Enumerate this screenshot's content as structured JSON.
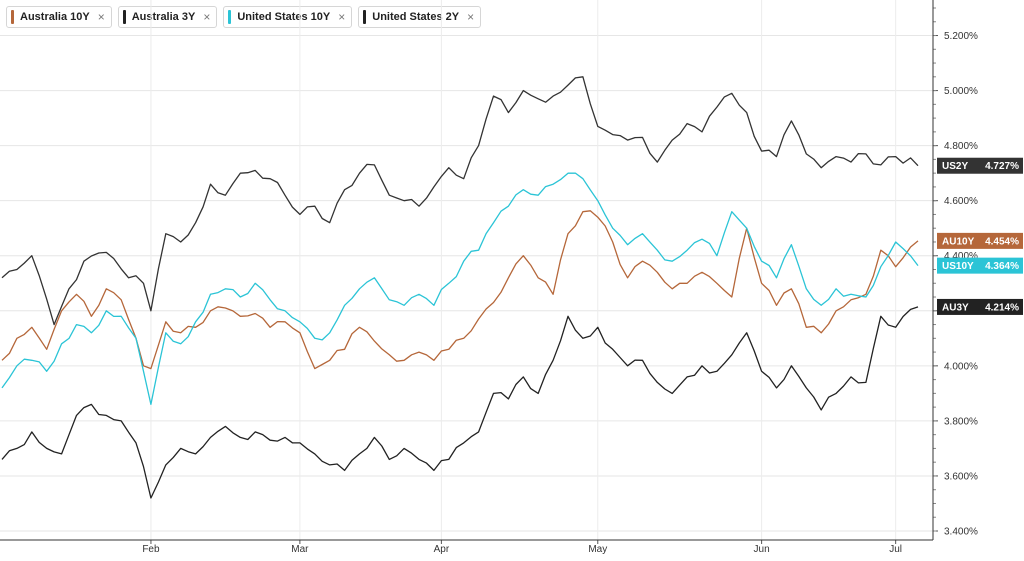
{
  "legend": [
    {
      "label": "Australia 10Y",
      "color": "#b5673a",
      "close": "×"
    },
    {
      "label": "Australia 3Y",
      "color": "#222222",
      "close": "×"
    },
    {
      "label": "United States 10Y",
      "color": "#2bc4d6",
      "close": "×"
    },
    {
      "label": "United States 2Y",
      "color": "#222222",
      "close": "×"
    }
  ],
  "chart_data": {
    "type": "line",
    "ylim": [
      3.4,
      5.3
    ],
    "yticks": [
      "5.200%",
      "5.000%",
      "4.800%",
      "4.600%",
      "4.400%",
      "4.200%",
      "4.000%",
      "3.800%",
      "3.600%",
      "3.400%"
    ],
    "ytick_values": [
      5.2,
      5.0,
      4.8,
      4.6,
      4.4,
      4.2,
      4.0,
      3.8,
      3.6,
      3.4
    ],
    "xticks": [
      "Feb",
      "Mar",
      "Apr",
      "May",
      "Jun",
      "Jul"
    ],
    "xtick_index": [
      20,
      40,
      59,
      80,
      102,
      120
    ],
    "n_points": 124,
    "grid": true,
    "series": [
      {
        "name": "United States 2Y",
        "label": "US2Y",
        "last_label": "4.727%",
        "color": "#333333",
        "keypoints": [
          [
            0,
            4.32
          ],
          [
            2,
            4.35
          ],
          [
            4,
            4.4
          ],
          [
            7,
            4.15
          ],
          [
            9,
            4.28
          ],
          [
            11,
            4.38
          ],
          [
            13,
            4.41
          ],
          [
            15,
            4.39
          ],
          [
            17,
            4.32
          ],
          [
            19,
            4.3
          ],
          [
            20,
            4.2
          ],
          [
            22,
            4.48
          ],
          [
            24,
            4.45
          ],
          [
            26,
            4.52
          ],
          [
            28,
            4.66
          ],
          [
            30,
            4.62
          ],
          [
            32,
            4.7
          ],
          [
            34,
            4.71
          ],
          [
            36,
            4.68
          ],
          [
            38,
            4.62
          ],
          [
            40,
            4.55
          ],
          [
            42,
            4.58
          ],
          [
            44,
            4.52
          ],
          [
            46,
            4.64
          ],
          [
            48,
            4.7
          ],
          [
            50,
            4.73
          ],
          [
            52,
            4.62
          ],
          [
            54,
            4.6
          ],
          [
            56,
            4.58
          ],
          [
            58,
            4.65
          ],
          [
            60,
            4.72
          ],
          [
            62,
            4.68
          ],
          [
            64,
            4.8
          ],
          [
            66,
            4.98
          ],
          [
            68,
            4.92
          ],
          [
            70,
            5.0
          ],
          [
            72,
            4.97
          ],
          [
            74,
            4.98
          ],
          [
            76,
            5.02
          ],
          [
            78,
            5.05
          ],
          [
            80,
            4.87
          ],
          [
            82,
            4.84
          ],
          [
            84,
            4.82
          ],
          [
            86,
            4.83
          ],
          [
            88,
            4.74
          ],
          [
            90,
            4.82
          ],
          [
            92,
            4.88
          ],
          [
            94,
            4.85
          ],
          [
            96,
            4.94
          ],
          [
            98,
            4.99
          ],
          [
            100,
            4.92
          ],
          [
            102,
            4.78
          ],
          [
            104,
            4.76
          ],
          [
            106,
            4.89
          ],
          [
            108,
            4.77
          ],
          [
            110,
            4.72
          ],
          [
            112,
            4.76
          ],
          [
            114,
            4.74
          ],
          [
            116,
            4.77
          ],
          [
            118,
            4.73
          ],
          [
            120,
            4.76
          ],
          [
            123,
            4.727
          ]
        ]
      },
      {
        "name": "Australia 10Y",
        "label": "AU10Y",
        "last_label": "4.454%",
        "color": "#b5673a",
        "keypoints": [
          [
            0,
            4.02
          ],
          [
            2,
            4.1
          ],
          [
            4,
            4.14
          ],
          [
            6,
            4.06
          ],
          [
            8,
            4.2
          ],
          [
            10,
            4.26
          ],
          [
            12,
            4.18
          ],
          [
            14,
            4.28
          ],
          [
            16,
            4.24
          ],
          [
            18,
            4.1
          ],
          [
            19,
            4.0
          ],
          [
            20,
            3.99
          ],
          [
            22,
            4.16
          ],
          [
            24,
            4.12
          ],
          [
            26,
            4.14
          ],
          [
            28,
            4.2
          ],
          [
            30,
            4.21
          ],
          [
            32,
            4.18
          ],
          [
            34,
            4.19
          ],
          [
            36,
            4.14
          ],
          [
            38,
            4.16
          ],
          [
            40,
            4.12
          ],
          [
            42,
            3.99
          ],
          [
            44,
            4.02
          ],
          [
            46,
            4.06
          ],
          [
            48,
            4.14
          ],
          [
            50,
            4.09
          ],
          [
            52,
            4.04
          ],
          [
            54,
            4.02
          ],
          [
            56,
            4.05
          ],
          [
            58,
            4.02
          ],
          [
            60,
            4.06
          ],
          [
            62,
            4.1
          ],
          [
            64,
            4.17
          ],
          [
            66,
            4.23
          ],
          [
            68,
            4.32
          ],
          [
            70,
            4.4
          ],
          [
            72,
            4.32
          ],
          [
            74,
            4.26
          ],
          [
            76,
            4.48
          ],
          [
            78,
            4.56
          ],
          [
            80,
            4.54
          ],
          [
            82,
            4.45
          ],
          [
            84,
            4.32
          ],
          [
            86,
            4.38
          ],
          [
            88,
            4.34
          ],
          [
            90,
            4.28
          ],
          [
            92,
            4.3
          ],
          [
            94,
            4.34
          ],
          [
            96,
            4.3
          ],
          [
            98,
            4.25
          ],
          [
            100,
            4.5
          ],
          [
            102,
            4.3
          ],
          [
            104,
            4.22
          ],
          [
            106,
            4.28
          ],
          [
            108,
            4.14
          ],
          [
            110,
            4.12
          ],
          [
            112,
            4.2
          ],
          [
            114,
            4.24
          ],
          [
            116,
            4.26
          ],
          [
            118,
            4.42
          ],
          [
            120,
            4.36
          ],
          [
            123,
            4.454
          ]
        ]
      },
      {
        "name": "United States 10Y",
        "label": "US10Y",
        "last_label": "4.364%",
        "color": "#2bc4d6",
        "keypoints": [
          [
            0,
            3.92
          ],
          [
            2,
            4.0
          ],
          [
            4,
            4.02
          ],
          [
            6,
            3.98
          ],
          [
            8,
            4.08
          ],
          [
            10,
            4.15
          ],
          [
            12,
            4.12
          ],
          [
            14,
            4.2
          ],
          [
            16,
            4.18
          ],
          [
            18,
            4.1
          ],
          [
            19,
            3.98
          ],
          [
            20,
            3.86
          ],
          [
            22,
            4.12
          ],
          [
            24,
            4.08
          ],
          [
            26,
            4.16
          ],
          [
            28,
            4.26
          ],
          [
            30,
            4.28
          ],
          [
            32,
            4.25
          ],
          [
            34,
            4.3
          ],
          [
            36,
            4.24
          ],
          [
            38,
            4.2
          ],
          [
            40,
            4.16
          ],
          [
            42,
            4.1
          ],
          [
            44,
            4.12
          ],
          [
            46,
            4.22
          ],
          [
            48,
            4.28
          ],
          [
            50,
            4.32
          ],
          [
            52,
            4.24
          ],
          [
            54,
            4.22
          ],
          [
            56,
            4.26
          ],
          [
            58,
            4.22
          ],
          [
            60,
            4.3
          ],
          [
            62,
            4.38
          ],
          [
            64,
            4.42
          ],
          [
            66,
            4.52
          ],
          [
            68,
            4.58
          ],
          [
            70,
            4.64
          ],
          [
            72,
            4.62
          ],
          [
            74,
            4.66
          ],
          [
            76,
            4.7
          ],
          [
            78,
            4.68
          ],
          [
            80,
            4.6
          ],
          [
            82,
            4.5
          ],
          [
            84,
            4.44
          ],
          [
            86,
            4.48
          ],
          [
            88,
            4.42
          ],
          [
            90,
            4.38
          ],
          [
            92,
            4.42
          ],
          [
            94,
            4.46
          ],
          [
            96,
            4.4
          ],
          [
            98,
            4.56
          ],
          [
            100,
            4.5
          ],
          [
            102,
            4.38
          ],
          [
            104,
            4.32
          ],
          [
            106,
            4.44
          ],
          [
            108,
            4.28
          ],
          [
            110,
            4.22
          ],
          [
            112,
            4.28
          ],
          [
            114,
            4.26
          ],
          [
            116,
            4.25
          ],
          [
            118,
            4.36
          ],
          [
            120,
            4.45
          ],
          [
            123,
            4.364
          ]
        ]
      },
      {
        "name": "Australia 3Y",
        "label": "AU3Y",
        "last_label": "4.214%",
        "color": "#222222",
        "keypoints": [
          [
            0,
            3.66
          ],
          [
            2,
            3.7
          ],
          [
            4,
            3.76
          ],
          [
            6,
            3.7
          ],
          [
            8,
            3.68
          ],
          [
            10,
            3.82
          ],
          [
            12,
            3.86
          ],
          [
            14,
            3.82
          ],
          [
            16,
            3.8
          ],
          [
            18,
            3.72
          ],
          [
            20,
            3.52
          ],
          [
            22,
            3.64
          ],
          [
            24,
            3.7
          ],
          [
            26,
            3.68
          ],
          [
            28,
            3.74
          ],
          [
            30,
            3.78
          ],
          [
            32,
            3.74
          ],
          [
            34,
            3.76
          ],
          [
            36,
            3.73
          ],
          [
            38,
            3.74
          ],
          [
            40,
            3.72
          ],
          [
            42,
            3.68
          ],
          [
            44,
            3.64
          ],
          [
            46,
            3.62
          ],
          [
            48,
            3.68
          ],
          [
            50,
            3.74
          ],
          [
            52,
            3.66
          ],
          [
            54,
            3.7
          ],
          [
            56,
            3.66
          ],
          [
            58,
            3.62
          ],
          [
            60,
            3.66
          ],
          [
            62,
            3.72
          ],
          [
            64,
            3.76
          ],
          [
            66,
            3.9
          ],
          [
            68,
            3.88
          ],
          [
            70,
            3.96
          ],
          [
            72,
            3.9
          ],
          [
            74,
            4.02
          ],
          [
            76,
            4.18
          ],
          [
            78,
            4.1
          ],
          [
            80,
            4.14
          ],
          [
            82,
            4.06
          ],
          [
            84,
            4.0
          ],
          [
            86,
            4.02
          ],
          [
            88,
            3.94
          ],
          [
            90,
            3.9
          ],
          [
            92,
            3.96
          ],
          [
            94,
            4.0
          ],
          [
            96,
            3.98
          ],
          [
            98,
            4.04
          ],
          [
            100,
            4.12
          ],
          [
            102,
            3.98
          ],
          [
            104,
            3.92
          ],
          [
            106,
            4.0
          ],
          [
            108,
            3.92
          ],
          [
            110,
            3.84
          ],
          [
            112,
            3.9
          ],
          [
            114,
            3.96
          ],
          [
            116,
            3.94
          ],
          [
            118,
            4.18
          ],
          [
            120,
            4.14
          ],
          [
            123,
            4.214
          ]
        ]
      }
    ]
  }
}
